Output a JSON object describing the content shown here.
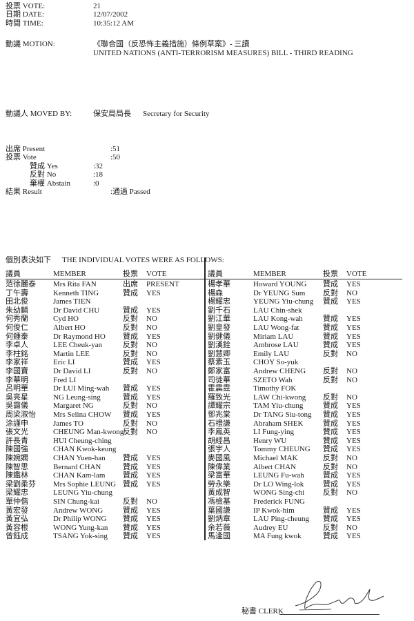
{
  "header": {
    "vote_label": "投票 VOTE:",
    "vote_value": "21",
    "date_label": "日期 DATE:",
    "date_value": "12/07/2002",
    "time_label": "時間 TIME:",
    "time_value": "10:35:12 AM",
    "motion_label": "動議 MOTION:",
    "motion_zh": "《聯合國（反恐怖主義措施）條例草案》- 三讀",
    "motion_en": "UNITED NATIONS (ANTI-TERRORISM MEASURES) BILL - THIRD READING",
    "moved_by_label": "動議人 MOVED BY:",
    "moved_by_zh": "保安局局長",
    "moved_by_en": "Secretary for Security"
  },
  "summary": {
    "present_label": "出席 Present",
    "present_value": ":51",
    "vote_label": "投票 Vote",
    "vote_value": ":50",
    "yes_label": "贊成 Yes",
    "yes_value": ":32",
    "no_label": "反對 No",
    "no_value": ":18",
    "abstain_label": "棄權 Abstain",
    "abstain_value": ":0",
    "result_label": "結果 Result",
    "result_value": ":通過 Passed"
  },
  "votes_intro_zh": "個別表決如下",
  "votes_intro_en": "THE INDIVIDUAL VOTES WERE AS FOLLOWS:",
  "columns": {
    "member_zh": "議員",
    "member_en": "MEMBER",
    "vote_zh": "投票",
    "vote_en": "VOTE"
  },
  "left_rows": [
    [
      "范徐麗泰",
      "Mrs Rita FAN",
      "出席",
      "PRESENT"
    ],
    [
      "丁午壽",
      "Kenneth TING",
      "贊成",
      "YES"
    ],
    [
      "田北俊",
      "James TIEN",
      "",
      ""
    ],
    [
      "朱幼麟",
      "Dr David CHU",
      "贊成",
      "YES"
    ],
    [
      "何秀蘭",
      "Cyd HO",
      "反對",
      "NO"
    ],
    [
      "何俊仁",
      "Albert HO",
      "反對",
      "NO"
    ],
    [
      "何鍾泰",
      "Dr Raymond HO",
      "贊成",
      "YES"
    ],
    [
      "李卓人",
      "LEE Cheuk-yan",
      "反對",
      "NO"
    ],
    [
      "李柱銘",
      "Martin LEE",
      "反對",
      "NO"
    ],
    [
      "李家祥",
      "Eric LI",
      "贊成",
      "YES"
    ],
    [
      "李國寶",
      "Dr David LI",
      "反對",
      "NO"
    ],
    [
      "李華明",
      "Fred LI",
      "",
      ""
    ],
    [
      "呂明華",
      "Dr LUI Ming-wah",
      "贊成",
      "YES"
    ],
    [
      "吳亮星",
      "NG Leung-sing",
      "贊成",
      "YES"
    ],
    [
      "吳靄儀",
      "Margaret NG",
      "反對",
      "NO"
    ],
    [
      "周梁淑怡",
      "Mrs Selina CHOW",
      "贊成",
      "YES"
    ],
    [
      "涂謹申",
      "James TO",
      "反對",
      "NO"
    ],
    [
      "張文光",
      "CHEUNG Man-kwong",
      "反對",
      "NO"
    ],
    [
      "許長青",
      "HUI Cheung-ching",
      "",
      ""
    ],
    [
      "陳國強",
      "CHAN Kwok-keung",
      "",
      ""
    ],
    [
      "陳婉嫻",
      "CHAN Yuen-han",
      "贊成",
      "YES"
    ],
    [
      "陳智思",
      "Bernard CHAN",
      "贊成",
      "YES"
    ],
    [
      "陳鑑林",
      "CHAN Kam-lam",
      "贊成",
      "YES"
    ],
    [
      "梁劉柔芬",
      "Mrs Sophie LEUNG",
      "贊成",
      "YES"
    ],
    [
      "梁耀忠",
      "LEUNG Yiu-chung",
      "",
      ""
    ],
    [
      "單仲偕",
      "SIN Chung-kai",
      "反對",
      "NO"
    ],
    [
      "黃宏發",
      "Andrew WONG",
      "贊成",
      "YES"
    ],
    [
      "黃宜弘",
      "Dr Philip WONG",
      "贊成",
      "YES"
    ],
    [
      "黃容根",
      "WONG Yung-kan",
      "贊成",
      "YES"
    ],
    [
      "曾鈺成",
      "TSANG Yok-sing",
      "贊成",
      "YES"
    ]
  ],
  "right_rows": [
    [
      "楊孝華",
      "Howard YOUNG",
      "贊成",
      "YES"
    ],
    [
      "楊森",
      "Dr YEUNG Sum",
      "反對",
      "NO"
    ],
    [
      "楊耀忠",
      "YEUNG Yiu-chung",
      "贊成",
      "YES"
    ],
    [
      "劉千石",
      "LAU Chin-shek",
      "",
      ""
    ],
    [
      "劉江華",
      "LAU Kong-wah",
      "贊成",
      "YES"
    ],
    [
      "劉皇發",
      "LAU Wong-fat",
      "贊成",
      "YES"
    ],
    [
      "劉健儀",
      "Miriam LAU",
      "贊成",
      "YES"
    ],
    [
      "劉漢銓",
      "Ambrose LAU",
      "贊成",
      "YES"
    ],
    [
      "劉慧卿",
      "Emily LAU",
      "反對",
      "NO"
    ],
    [
      "蔡素玉",
      "CHOY So-yuk",
      "",
      ""
    ],
    [
      "鄭家富",
      "Andrew CHENG",
      "反對",
      "NO"
    ],
    [
      "司徒華",
      "SZETO Wah",
      "反對",
      "NO"
    ],
    [
      "霍震霆",
      "Timothy FOK",
      "",
      ""
    ],
    [
      "羅致光",
      "LAW Chi-kwong",
      "反對",
      "NO"
    ],
    [
      "譚耀宗",
      "TAM Yiu-chung",
      "贊成",
      "YES"
    ],
    [
      "鄧兆棠",
      "Dr TANG Siu-tong",
      "贊成",
      "YES"
    ],
    [
      "石禮謙",
      "Abraham SHEK",
      "贊成",
      "YES"
    ],
    [
      "李鳳英",
      "LI Fung-ying",
      "贊成",
      "YES"
    ],
    [
      "胡經昌",
      "Henry WU",
      "贊成",
      "YES"
    ],
    [
      "張宇人",
      "Tommy CHEUNG",
      "贊成",
      "YES"
    ],
    [
      "麥國風",
      "Michael MAK",
      "反對",
      "NO"
    ],
    [
      "陳偉業",
      "Albert CHAN",
      "反對",
      "NO"
    ],
    [
      "梁富華",
      "LEUNG Fu-wah",
      "贊成",
      "YES"
    ],
    [
      "勞永樂",
      "Dr LO Wing-lok",
      "贊成",
      "YES"
    ],
    [
      "黃成智",
      "WONG Sing-chi",
      "反對",
      "NO"
    ],
    [
      "馮檢基",
      "Frederick FUNG",
      "",
      ""
    ],
    [
      "葉國謙",
      "IP Kwok-him",
      "贊成",
      "YES"
    ],
    [
      "劉炳章",
      "LAU Ping-cheung",
      "贊成",
      "YES"
    ],
    [
      "余若薇",
      "Audrey EU",
      "反對",
      "NO"
    ],
    [
      "馬逢國",
      "MA Fung kwok",
      "贊成",
      "YES"
    ]
  ],
  "footer": {
    "clerk_label": "秘書 CLERK"
  }
}
